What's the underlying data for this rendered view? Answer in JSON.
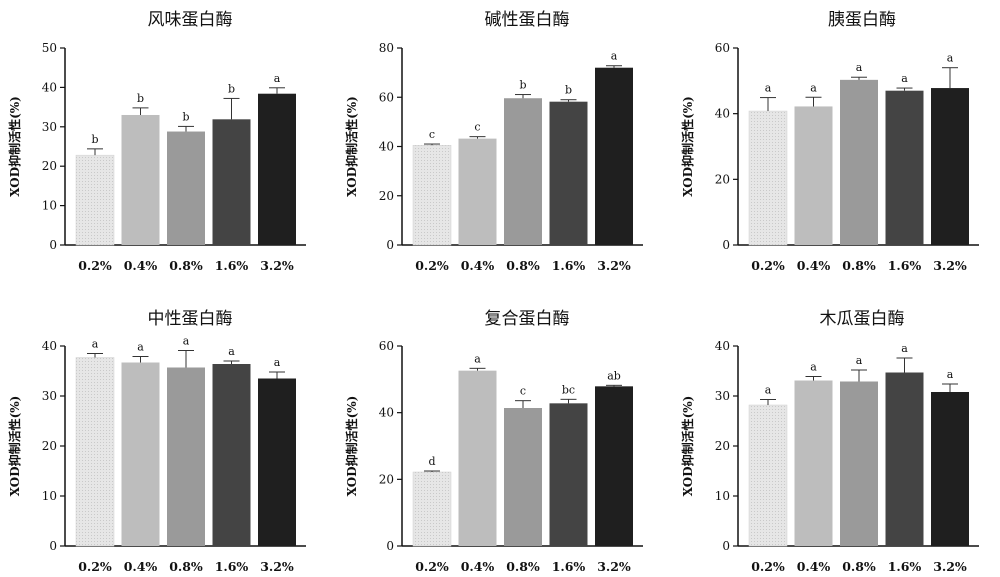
{
  "colors": {
    "bar_fills": [
      "#e6e6e6",
      "#bdbdbd",
      "#9a9a9a",
      "#444444",
      "#1f1f1f"
    ],
    "axis": "#111111",
    "error_bar": "#333333"
  },
  "chart_data": [
    {
      "type": "bar",
      "title": "风味蛋白酶",
      "ylabel": "XOD抑制活性(%)",
      "categories": [
        "0.2%",
        "0.4%",
        "0.8%",
        "1.6%",
        "3.2%"
      ],
      "values": [
        22.8,
        33.0,
        28.8,
        31.9,
        38.4
      ],
      "errors": [
        1.6,
        1.8,
        1.3,
        5.3,
        1.5
      ],
      "labels": [
        "b",
        "b",
        "b",
        "b",
        "a"
      ],
      "ylim": [
        0,
        50
      ],
      "yticks": [
        0,
        10,
        20,
        30,
        40,
        50
      ],
      "grid": false
    },
    {
      "type": "bar",
      "title": "碱性蛋白酶",
      "ylabel": "XOD抑制活性(%)",
      "categories": [
        "0.2%",
        "0.4%",
        "0.8%",
        "1.6%",
        "3.2%"
      ],
      "values": [
        40.5,
        43.2,
        59.6,
        58.2,
        72.0
      ],
      "errors": [
        0.5,
        0.8,
        1.5,
        0.8,
        0.8
      ],
      "labels": [
        "c",
        "c",
        "b",
        "b",
        "a"
      ],
      "ylim": [
        0,
        80
      ],
      "yticks": [
        0,
        20,
        40,
        60,
        80
      ],
      "grid": false
    },
    {
      "type": "bar",
      "title": "胰蛋白酶",
      "ylabel": "XOD抑制活性(%)",
      "categories": [
        "0.2%",
        "0.4%",
        "0.8%",
        "1.6%",
        "3.2%"
      ],
      "values": [
        40.8,
        42.2,
        50.3,
        47.0,
        47.8
      ],
      "errors": [
        4.1,
        2.8,
        0.8,
        0.8,
        6.2
      ],
      "labels": [
        "a",
        "a",
        "a",
        "a",
        "a"
      ],
      "ylim": [
        0,
        60
      ],
      "yticks": [
        0,
        20,
        40,
        60
      ],
      "grid": false
    },
    {
      "type": "bar",
      "title": "中性蛋白酶",
      "ylabel": "XOD抑制活性(%)",
      "categories": [
        "0.2%",
        "0.4%",
        "0.8%",
        "1.6%",
        "3.2%"
      ],
      "values": [
        37.7,
        36.7,
        35.7,
        36.4,
        33.5
      ],
      "errors": [
        0.8,
        1.2,
        3.4,
        0.6,
        1.3
      ],
      "labels": [
        "a",
        "a",
        "a",
        "a",
        "a"
      ],
      "ylim": [
        0,
        40
      ],
      "yticks": [
        0,
        10,
        20,
        30,
        40
      ],
      "grid": false
    },
    {
      "type": "bar",
      "title": "复合蛋白酶",
      "ylabel": "XOD抑制活性(%)",
      "categories": [
        "0.2%",
        "0.4%",
        "0.8%",
        "1.6%",
        "3.2%"
      ],
      "values": [
        22.2,
        52.6,
        41.4,
        42.8,
        47.9
      ],
      "errors": [
        0.3,
        0.7,
        2.2,
        1.2,
        0.3
      ],
      "labels": [
        "d",
        "a",
        "c",
        "bc",
        "ab"
      ],
      "ylim": [
        0,
        60
      ],
      "yticks": [
        0,
        20,
        40,
        60
      ],
      "grid": false
    },
    {
      "type": "bar",
      "title": "木瓜蛋白酶",
      "ylabel": "XOD抑制活性(%)",
      "categories": [
        "0.2%",
        "0.4%",
        "0.8%",
        "1.6%",
        "3.2%"
      ],
      "values": [
        28.2,
        33.1,
        32.9,
        34.7,
        30.8
      ],
      "errors": [
        1.1,
        0.8,
        2.3,
        2.9,
        1.6
      ],
      "labels": [
        "a",
        "a",
        "a",
        "a",
        "a"
      ],
      "ylim": [
        0,
        40
      ],
      "yticks": [
        0,
        10,
        20,
        30,
        40
      ],
      "grid": false
    }
  ]
}
